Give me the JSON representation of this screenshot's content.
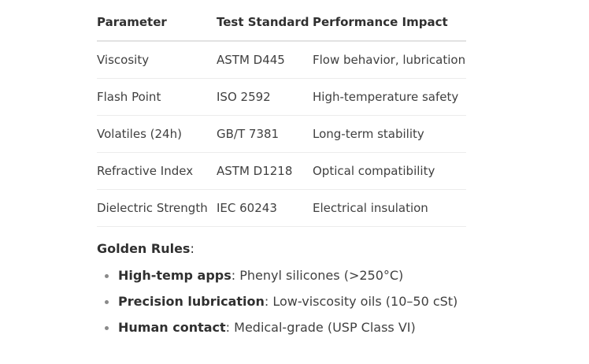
{
  "table": {
    "headers": [
      "Parameter",
      "Test Standard",
      "Performance Impact"
    ],
    "rows": [
      [
        "Viscosity",
        "ASTM D445",
        "Flow behavior, lubrication"
      ],
      [
        "Flash Point",
        "ISO 2592",
        "High-temperature safety"
      ],
      [
        "Volatiles (24h)",
        "GB/T 7381",
        "Long-term stability"
      ],
      [
        "Refractive Index",
        "ASTM D1218",
        "Optical compatibility"
      ],
      [
        "Dielectric Strength",
        "IEC 60243",
        "Electrical insulation"
      ]
    ]
  },
  "rules": {
    "title": "Golden Rules",
    "title_suffix": ":",
    "items": [
      {
        "bold": "High-temp apps",
        "text": ": Phenyl silicones (>250°C)"
      },
      {
        "bold": "Precision lubrication",
        "text": ": Low-viscosity oils (10–50 cSt)"
      },
      {
        "bold": "Human contact",
        "text": ": Medical-grade (USP Class VI)"
      }
    ]
  }
}
